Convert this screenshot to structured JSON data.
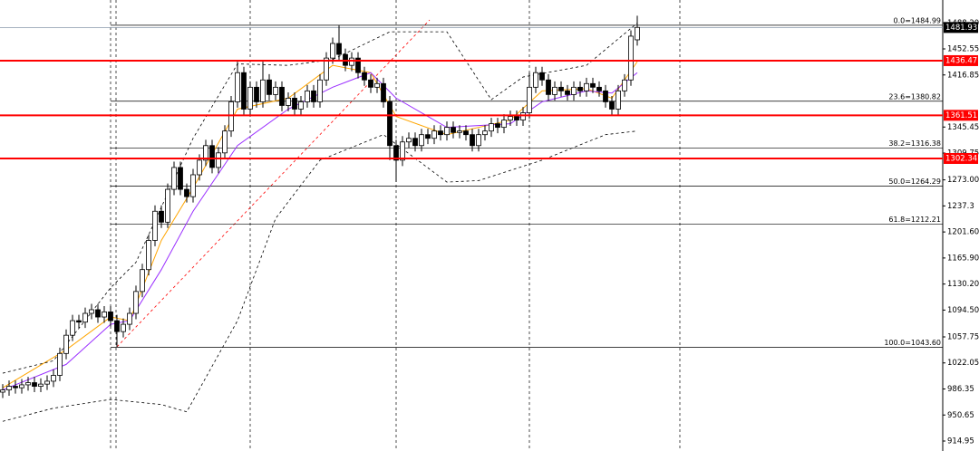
{
  "chart_data": {
    "type": "candlestick",
    "open": [
      982,
      985,
      990,
      988,
      992,
      995,
      990,
      993,
      997,
      1005,
      1035,
      1060,
      1080,
      1078,
      1090,
      1095,
      1085,
      1092,
      1080,
      1065,
      1075,
      1090,
      1120,
      1150,
      1190,
      1230,
      1215,
      1260,
      1290,
      1260,
      1250,
      1280,
      1300,
      1320,
      1290,
      1310,
      1340,
      1380,
      1420,
      1370,
      1400,
      1380,
      1410,
      1390,
      1400,
      1375,
      1385,
      1370,
      1380,
      1395,
      1380,
      1410,
      1440,
      1460,
      1445,
      1430,
      1440,
      1420,
      1410,
      1400,
      1405,
      1380,
      1320,
      1300,
      1325,
      1330,
      1320,
      1335,
      1330,
      1340,
      1335,
      1345,
      1338,
      1340,
      1335,
      1320,
      1335,
      1340,
      1350,
      1345,
      1355,
      1360,
      1355,
      1365,
      1400,
      1420,
      1410,
      1390,
      1400,
      1395,
      1390,
      1400,
      1395,
      1405,
      1400,
      1395,
      1380,
      1370,
      1395,
      1410,
      1465
    ],
    "high": [
      993,
      998,
      998,
      1000,
      1003,
      1003,
      1001,
      1005,
      1013,
      1043,
      1068,
      1088,
      1088,
      1098,
      1103,
      1103,
      1100,
      1100,
      1088,
      1083,
      1098,
      1128,
      1158,
      1198,
      1238,
      1238,
      1268,
      1298,
      1298,
      1268,
      1288,
      1308,
      1328,
      1328,
      1318,
      1348,
      1388,
      1435,
      1428,
      1408,
      1408,
      1435,
      1418,
      1408,
      1408,
      1393,
      1393,
      1388,
      1403,
      1403,
      1418,
      1448,
      1468,
      1485,
      1453,
      1448,
      1448,
      1428,
      1418,
      1413,
      1413,
      1388,
      1328,
      1333,
      1338,
      1338,
      1343,
      1343,
      1348,
      1348,
      1353,
      1353,
      1348,
      1348,
      1343,
      1343,
      1348,
      1358,
      1358,
      1363,
      1368,
      1368,
      1373,
      1420,
      1428,
      1428,
      1418,
      1408,
      1408,
      1403,
      1408,
      1408,
      1413,
      1413,
      1408,
      1403,
      1388,
      1403,
      1418,
      1478,
      1498
    ],
    "low": [
      974,
      977,
      980,
      980,
      984,
      982,
      982,
      985,
      989,
      997,
      1027,
      1052,
      1070,
      1070,
      1082,
      1077,
      1077,
      1072,
      1044,
      1057,
      1067,
      1082,
      1112,
      1142,
      1182,
      1207,
      1207,
      1252,
      1252,
      1242,
      1242,
      1272,
      1292,
      1282,
      1282,
      1302,
      1332,
      1372,
      1362,
      1362,
      1372,
      1372,
      1382,
      1382,
      1367,
      1367,
      1362,
      1362,
      1372,
      1372,
      1372,
      1402,
      1432,
      1437,
      1422,
      1422,
      1412,
      1402,
      1392,
      1392,
      1372,
      1300,
      1270,
      1292,
      1317,
      1312,
      1312,
      1322,
      1322,
      1327,
      1327,
      1330,
      1330,
      1327,
      1312,
      1312,
      1327,
      1332,
      1337,
      1337,
      1347,
      1347,
      1347,
      1357,
      1392,
      1402,
      1382,
      1382,
      1387,
      1382,
      1382,
      1387,
      1387,
      1392,
      1387,
      1372,
      1362,
      1362,
      1387,
      1402,
      1457
    ],
    "close": [
      985,
      990,
      988,
      992,
      995,
      990,
      993,
      997,
      1005,
      1035,
      1060,
      1080,
      1078,
      1090,
      1095,
      1085,
      1092,
      1080,
      1065,
      1075,
      1090,
      1120,
      1150,
      1190,
      1230,
      1215,
      1260,
      1290,
      1260,
      1250,
      1280,
      1300,
      1320,
      1290,
      1310,
      1340,
      1380,
      1420,
      1370,
      1400,
      1380,
      1410,
      1390,
      1400,
      1375,
      1385,
      1370,
      1380,
      1395,
      1380,
      1410,
      1440,
      1460,
      1445,
      1430,
      1440,
      1420,
      1410,
      1400,
      1405,
      1380,
      1320,
      1300,
      1325,
      1330,
      1320,
      1335,
      1330,
      1340,
      1335,
      1345,
      1338,
      1340,
      1335,
      1320,
      1335,
      1340,
      1350,
      1345,
      1355,
      1360,
      1355,
      1365,
      1400,
      1420,
      1410,
      1390,
      1400,
      1395,
      1390,
      1400,
      1395,
      1405,
      1400,
      1395,
      1380,
      1370,
      1395,
      1410,
      1470,
      1482
    ],
    "up_color": "#ffffff",
    "down_color": "#000000",
    "ylim": [
      901.3,
      1519.6
    ],
    "yticks": [
      {
        "value": 1488.2,
        "label": "1488.20"
      },
      1452.55,
      1416.85,
      1345.45,
      1309.75,
      {
        "value": 1273,
        "label": "1273.00"
      },
      1237.3,
      {
        "value": 1201.6,
        "label": "1201.60"
      },
      {
        "value": 1165.9,
        "label": "1165.90"
      },
      {
        "value": 1130.2,
        "label": "1130.20"
      },
      {
        "value": 1094.5,
        "label": "1094.50"
      },
      1057.75,
      1022.05,
      986.35,
      950.65,
      914.95
    ],
    "current_price": 1481.93,
    "levels": [
      1436.47,
      1361.51,
      1302.34
    ],
    "level_color": "#ff0000",
    "fibonacci": [
      {
        "value": 1484.99,
        "label": "0.0=1484.99"
      },
      {
        "value": 1380.82,
        "label": "23.6=1380.82"
      },
      {
        "value": 1316.38,
        "label": "38.2=1316.38"
      },
      {
        "value": 1264.29,
        "label": "50.0=1264.29"
      },
      {
        "value": 1212.21,
        "label": "61.8=1212.21"
      },
      {
        "value": 1043.6,
        "label": "100.0=1043.60"
      }
    ],
    "indicators": [
      {
        "color": "#ffa500",
        "dashed": false,
        "x": [
          0,
          10,
          17,
          20,
          25,
          30,
          37,
          45,
          52,
          58,
          62,
          70,
          80,
          85,
          92,
          96,
          100
        ],
        "values": [
          988,
          1040,
          1085,
          1080,
          1190,
          1262,
          1370,
          1385,
          1430,
          1420,
          1360,
          1335,
          1355,
          1395,
          1398,
          1385,
          1435
        ]
      },
      {
        "color": "#9b30ff",
        "dashed": false,
        "x": [
          0,
          10,
          17,
          20,
          25,
          30,
          37,
          45,
          52,
          58,
          62,
          70,
          80,
          85,
          92,
          96,
          100
        ],
        "values": [
          985,
          1020,
          1075,
          1080,
          1150,
          1230,
          1320,
          1370,
          1400,
          1420,
          1385,
          1345,
          1350,
          1380,
          1395,
          1392,
          1420
        ]
      },
      {
        "color": "#000000",
        "dashed": true,
        "x": [
          0,
          8,
          17,
          21,
          30,
          37,
          45,
          52,
          61,
          70,
          77,
          82,
          92,
          100
        ],
        "values": [
          1008,
          1025,
          1125,
          1160,
          1330,
          1432,
          1430,
          1438,
          1476,
          1476,
          1383,
          1414,
          1430,
          1488
        ]
      },
      {
        "color": "#000000",
        "dashed": true,
        "x": [
          0,
          8,
          17,
          25,
          29,
          37,
          43,
          50,
          60,
          70,
          75,
          85,
          95,
          100
        ],
        "values": [
          942,
          960,
          972,
          965,
          955,
          1080,
          1220,
          1300,
          1335,
          1270,
          1272,
          1300,
          1335,
          1340
        ]
      }
    ]
  }
}
